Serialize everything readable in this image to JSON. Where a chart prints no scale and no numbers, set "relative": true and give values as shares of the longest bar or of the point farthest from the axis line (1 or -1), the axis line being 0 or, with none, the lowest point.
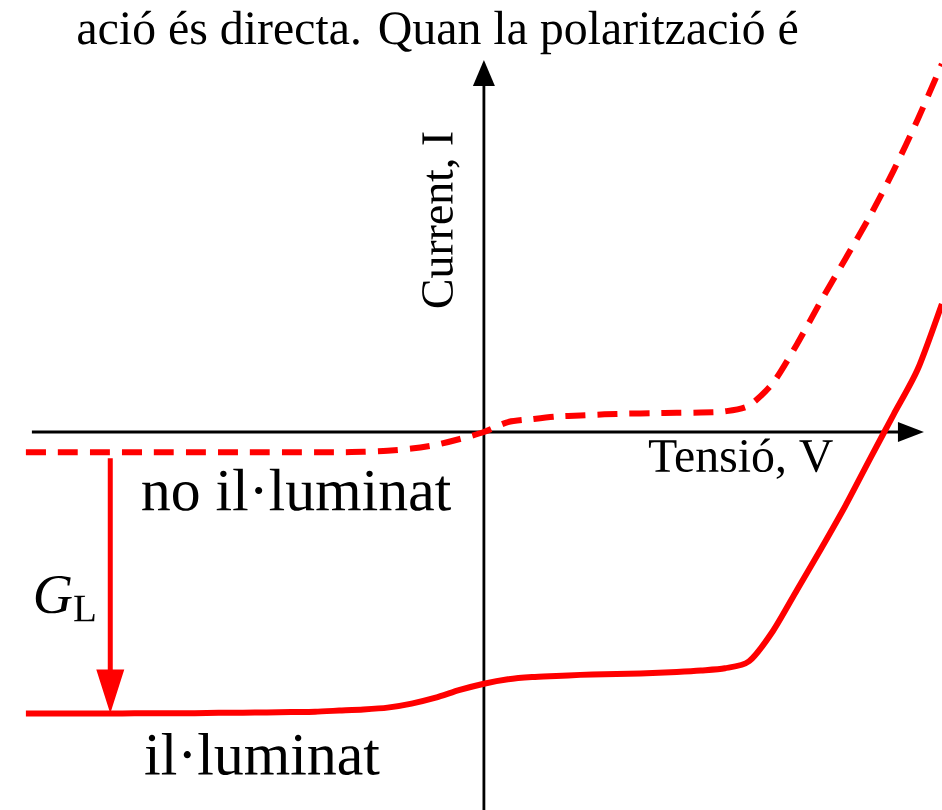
{
  "chart_data": {
    "type": "line",
    "relative": true,
    "annotations": [
      "ació és directa. Quan la polarització é",
      {
        "text": "*G*$_{L}$",
        "y": -0.765
      }
    ],
    "xlabel": "Tensió, V",
    "ylabel": "Current, I",
    "categories": [
      null,
      null,
      null,
      null,
      null,
      null,
      null,
      null,
      null,
      null,
      null,
      null,
      null,
      null,
      null,
      null,
      null,
      null,
      null,
      null,
      null,
      null,
      null,
      null,
      null,
      null,
      null,
      null,
      null,
      null,
      null,
      null,
      null,
      null,
      null,
      null,
      null,
      null,
      null
    ],
    "series": [
      {
        "name": "no il·luminat",
        "color": "#ff0000",
        "line_style": "dashed",
        "values": [
          -0.055,
          -0.055,
          -0.055,
          -0.055,
          -0.055,
          -0.055,
          -0.055,
          -0.055,
          -0.055,
          -0.055,
          -0.055,
          -0.055,
          -0.055,
          -0.055,
          -0.054,
          -0.051,
          -0.045,
          -0.035,
          -0.019,
          0,
          0.027,
          0.035,
          0.042,
          0.045,
          0.048,
          0.05,
          0.051,
          0.052,
          0.053,
          0.056,
          0.072,
          0.134,
          0.24,
          0.358,
          0.471,
          0.585,
          0.711,
          0.85,
          1
        ]
      },
      {
        "name": "il·luminat",
        "color": "#ff0000",
        "line_style": "solid",
        "values": [
          -0.765,
          -0.765,
          -0.765,
          -0.765,
          -0.765,
          -0.764,
          -0.764,
          -0.764,
          -0.763,
          -0.763,
          -0.762,
          -0.761,
          -0.76,
          -0.757,
          -0.754,
          -0.749,
          -0.738,
          -0.722,
          -0.701,
          -0.684,
          -0.672,
          -0.666,
          -0.663,
          -0.66,
          -0.658,
          -0.657,
          -0.655,
          -0.652,
          -0.648,
          -0.642,
          -0.623,
          -0.54,
          -0.428,
          -0.316,
          -0.2,
          -0.075,
          0.048,
          0.171,
          0.348
        ]
      }
    ]
  }
}
